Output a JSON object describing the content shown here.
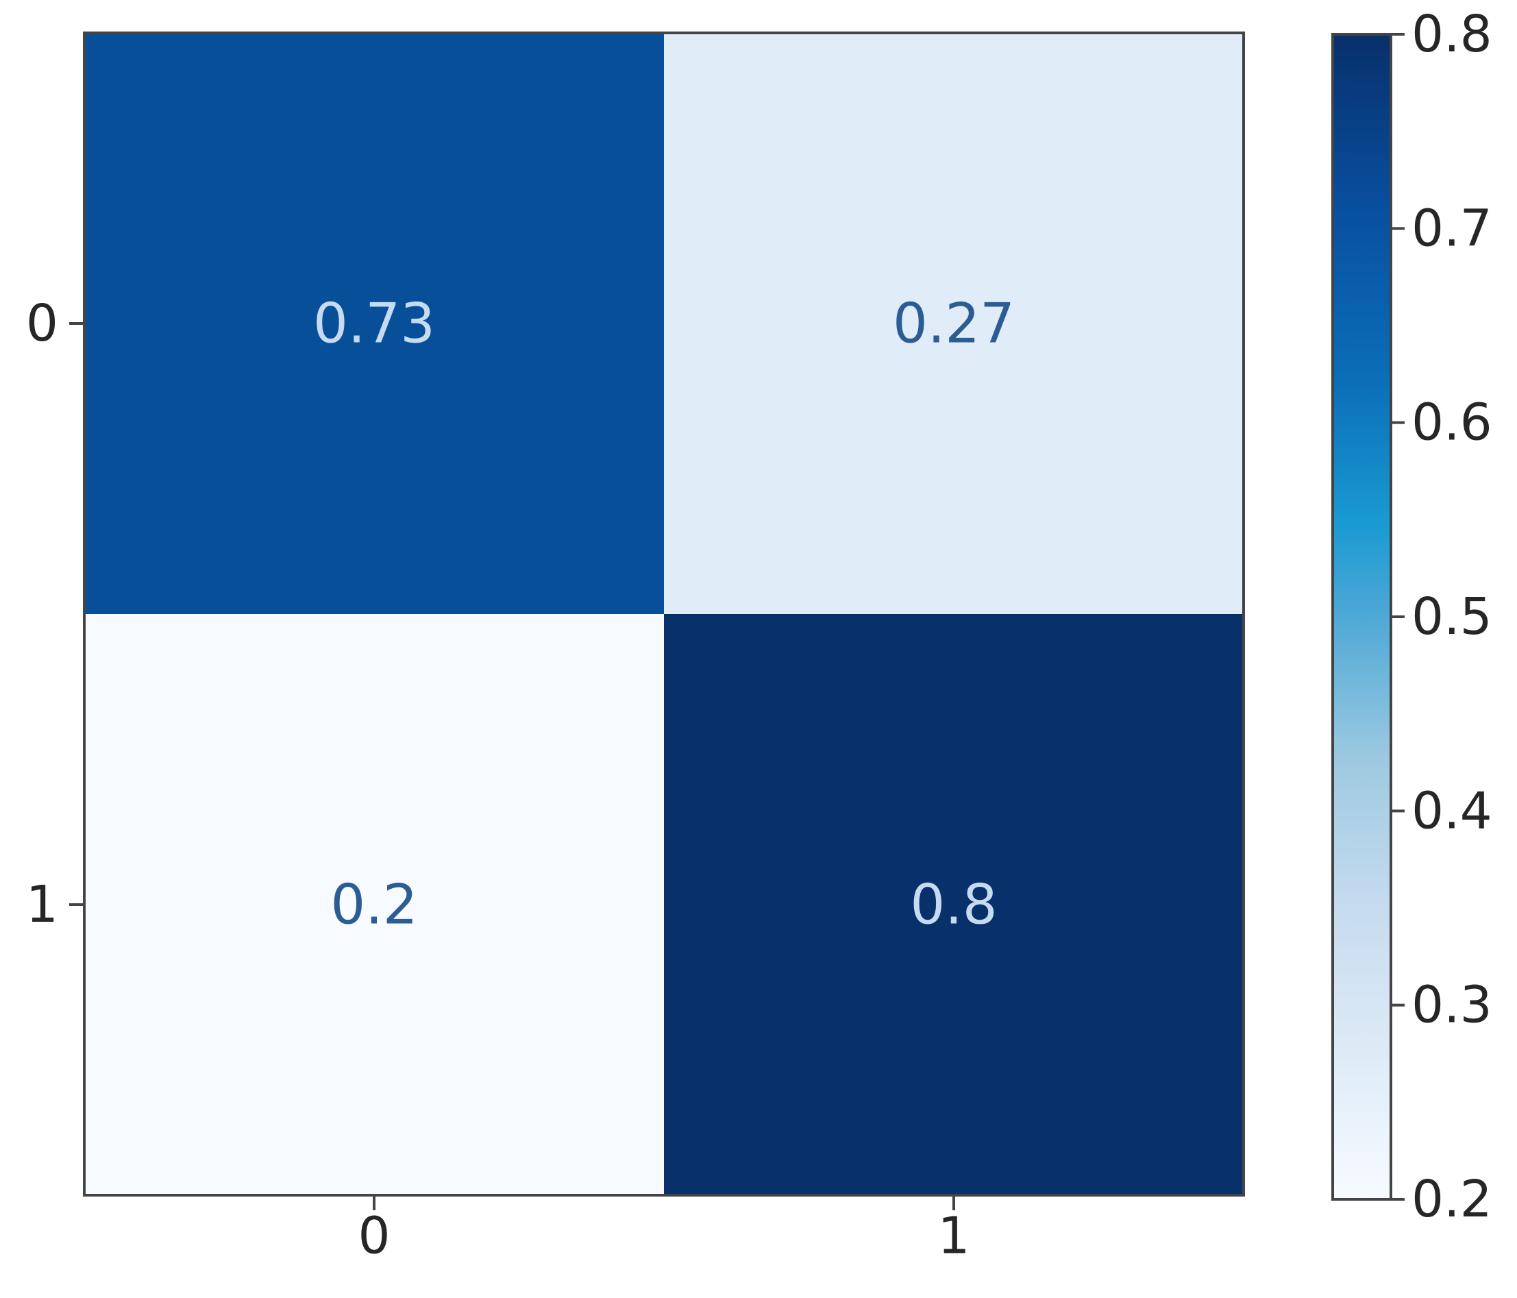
{
  "chart_data": {
    "type": "heatmap",
    "title": "",
    "xlabel": "",
    "ylabel": "",
    "x_categories": [
      "0",
      "1"
    ],
    "y_categories": [
      "0",
      "1"
    ],
    "values": [
      [
        0.73,
        0.27
      ],
      [
        0.2,
        0.8
      ]
    ],
    "value_labels": [
      [
        "0.73",
        "0.27"
      ],
      [
        "0.2",
        "0.8"
      ]
    ],
    "colormap": "Blues",
    "colorbar": {
      "range": [
        0.2,
        0.8
      ],
      "ticks": [
        0.2,
        0.3,
        0.4,
        0.5,
        0.6,
        0.7,
        0.8
      ],
      "tick_labels": [
        "0.2",
        "0.3",
        "0.4",
        "0.5",
        "0.6",
        "0.7",
        "0.8"
      ]
    },
    "grid": false,
    "legend": "colorbar right",
    "colors": {
      "low": "#f7fbff",
      "high": "#08306b",
      "light_text": "#c6dbef",
      "dark_text": "#2b5c93"
    }
  }
}
